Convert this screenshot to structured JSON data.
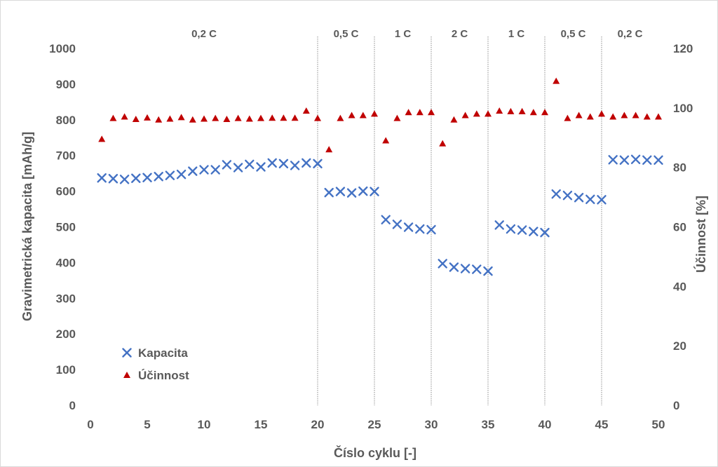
{
  "chart_data": {
    "type": "scatter",
    "xlabel": "Číslo cyklu [-]",
    "ylabel": "Gravimetrická kapacita [mAh/g]",
    "y2label": "Účinnost [%]",
    "xlim": [
      0,
      50
    ],
    "ylim": [
      0,
      1000
    ],
    "y2lim": [
      0,
      120
    ],
    "xticks": [
      0,
      5,
      10,
      15,
      20,
      25,
      30,
      35,
      40,
      45,
      50
    ],
    "yticks": [
      0,
      100,
      200,
      300,
      400,
      500,
      600,
      700,
      800,
      900,
      1000
    ],
    "y2ticks": [
      0,
      20,
      40,
      60,
      80,
      100,
      120
    ],
    "grid": false,
    "legend_position": "bottom-left",
    "rate_regions": [
      {
        "label": "0,2 C",
        "start": 0,
        "end": 20
      },
      {
        "label": "0,5 C",
        "start": 20,
        "end": 25
      },
      {
        "label": "1 C",
        "start": 25,
        "end": 30
      },
      {
        "label": "2 C",
        "start": 30,
        "end": 35
      },
      {
        "label": "1 C",
        "start": 35,
        "end": 40
      },
      {
        "label": "0,5 C",
        "start": 40,
        "end": 45
      },
      {
        "label": "0,2 C",
        "start": 45,
        "end": 50
      }
    ],
    "series": [
      {
        "name": "Kapacita",
        "axis": "left",
        "marker": "x",
        "color": "#4472C4",
        "x": [
          1,
          2,
          3,
          4,
          5,
          6,
          7,
          8,
          9,
          10,
          11,
          12,
          13,
          14,
          15,
          16,
          17,
          18,
          19,
          20,
          21,
          22,
          23,
          24,
          25,
          26,
          27,
          28,
          29,
          30,
          31,
          32,
          33,
          34,
          35,
          36,
          37,
          38,
          39,
          40,
          41,
          42,
          43,
          44,
          45,
          46,
          47,
          48,
          49,
          50
        ],
        "values": [
          637,
          635,
          633,
          636,
          638,
          641,
          644,
          647,
          656,
          660,
          660,
          674,
          666,
          675,
          668,
          679,
          677,
          672,
          679,
          677,
          596,
          599,
          595,
          600,
          599,
          520,
          507,
          499,
          494,
          492,
          397,
          387,
          383,
          381,
          376,
          505,
          494,
          491,
          487,
          484,
          592,
          588,
          582,
          577,
          576,
          688,
          687,
          689,
          687,
          687
        ]
      },
      {
        "name": "Účinnost",
        "axis": "right",
        "marker": "triangle",
        "color": "#C00000",
        "x": [
          1,
          2,
          3,
          4,
          5,
          6,
          7,
          8,
          9,
          10,
          11,
          12,
          13,
          14,
          15,
          16,
          17,
          18,
          19,
          20,
          21,
          22,
          23,
          24,
          25,
          26,
          27,
          28,
          29,
          30,
          31,
          32,
          33,
          34,
          35,
          36,
          37,
          38,
          39,
          40,
          41,
          42,
          43,
          44,
          45,
          46,
          47,
          48,
          49,
          50
        ],
        "values": [
          89.5,
          96.5,
          97.0,
          96.2,
          96.7,
          96.0,
          96.3,
          96.8,
          96.0,
          96.3,
          96.5,
          96.2,
          96.5,
          96.3,
          96.5,
          96.6,
          96.6,
          96.6,
          99.0,
          96.5,
          86.0,
          96.5,
          97.5,
          97.5,
          98.0,
          89.0,
          96.5,
          98.5,
          98.5,
          98.5,
          88.0,
          96.0,
          97.5,
          98.0,
          98.0,
          99.0,
          98.8,
          98.8,
          98.5,
          98.5,
          109.0,
          96.5,
          97.5,
          97.0,
          98.0,
          97.0,
          97.5,
          97.5,
          97.0,
          97.0
        ]
      }
    ]
  }
}
